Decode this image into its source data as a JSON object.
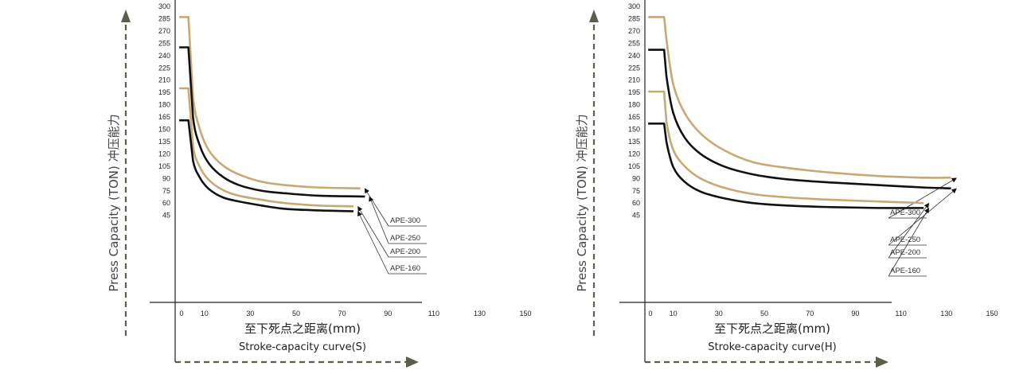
{
  "colors": {
    "gold": "#c9a873",
    "black": "#111111",
    "arrow": "#5d5d4b",
    "axis": "#222222"
  },
  "chart_data": [
    {
      "type": "line",
      "ylabel": "Press Capacity (TON)  冲压能力",
      "xlabel": "至下死点之距离(mm)",
      "subtitle": "Stroke-capacity curve(S)",
      "y_ticks": [
        "300",
        "285",
        "270",
        "255",
        "240",
        "225",
        "210",
        "195",
        "180",
        "165",
        "150",
        "135",
        "120",
        "105",
        "90",
        "75",
        "60",
        "45"
      ],
      "x_ticks": [
        "0",
        "10",
        "30",
        "50",
        "70",
        "90",
        "110",
        "130",
        "150"
      ],
      "series": [
        {
          "name": "APE-300",
          "color": "gold",
          "x": [
            -1,
            3,
            5,
            8,
            12,
            18,
            25,
            35,
            45,
            60,
            78
          ],
          "y": [
            287,
            287,
            190,
            150,
            124,
            106,
            95,
            86,
            82,
            79,
            78
          ]
        },
        {
          "name": "APE-250",
          "color": "black",
          "x": [
            -1,
            3,
            5,
            8,
            12,
            18,
            25,
            35,
            45,
            60,
            80
          ],
          "y": [
            250,
            250,
            165,
            130,
            108,
            92,
            82,
            75,
            72,
            69,
            68
          ]
        },
        {
          "name": "APE-200",
          "color": "gold",
          "x": [
            -1,
            3,
            5,
            8,
            12,
            18,
            25,
            35,
            45,
            60,
            75
          ],
          "y": [
            200,
            200,
            130,
            104,
            88,
            76,
            69,
            64,
            60,
            57,
            56
          ]
        },
        {
          "name": "APE-160",
          "color": "black",
          "x": [
            -1,
            3,
            5,
            8,
            12,
            18,
            25,
            35,
            45,
            60,
            75
          ],
          "y": [
            161,
            161,
            112,
            91,
            77,
            67,
            62,
            57,
            53,
            51,
            50
          ]
        }
      ]
    },
    {
      "type": "line",
      "ylabel": "Press Capacity (TON)  冲压能力",
      "xlabel": "至下死点之距离(mm)",
      "subtitle": "Stroke-capacity curve(H)",
      "y_ticks": [
        "300",
        "285",
        "270",
        "255",
        "240",
        "225",
        "210",
        "195",
        "180",
        "165",
        "150",
        "135",
        "120",
        "105",
        "90",
        "75",
        "60",
        "45"
      ],
      "x_ticks": [
        "0",
        "10",
        "30",
        "50",
        "70",
        "90",
        "110",
        "130",
        "150"
      ],
      "series": [
        {
          "name": "APE-300",
          "color": "gold",
          "x": [
            -1,
            6,
            7,
            10,
            15,
            22,
            32,
            45,
            60,
            80,
            100,
            120,
            132
          ],
          "y": [
            287,
            287,
            260,
            205,
            170,
            145,
            125,
            110,
            103,
            97,
            93,
            91,
            91
          ]
        },
        {
          "name": "APE-250",
          "color": "black",
          "x": [
            -1,
            6,
            7,
            10,
            15,
            22,
            32,
            45,
            60,
            80,
            100,
            120,
            132
          ],
          "y": [
            247,
            247,
            215,
            170,
            140,
            120,
            105,
            95,
            89,
            85,
            82,
            79,
            78
          ]
        },
        {
          "name": "APE-200",
          "color": "gold",
          "x": [
            -1,
            6,
            7,
            10,
            15,
            22,
            32,
            45,
            60,
            80,
            100,
            120
          ],
          "y": [
            196,
            196,
            160,
            125,
            105,
            90,
            79,
            71,
            67,
            64,
            62,
            60
          ]
        },
        {
          "name": "APE-160",
          "color": "black",
          "x": [
            -1,
            6,
            7,
            10,
            15,
            22,
            32,
            45,
            60,
            80,
            100,
            120
          ],
          "y": [
            157,
            157,
            135,
            104,
            86,
            74,
            66,
            60,
            57,
            55,
            54,
            54
          ]
        }
      ]
    }
  ]
}
